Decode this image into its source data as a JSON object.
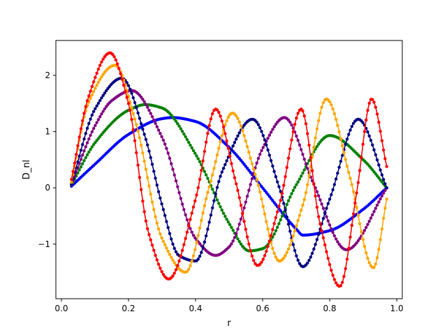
{
  "chart_data": {
    "type": "line",
    "title": "",
    "xlabel": "r",
    "ylabel": "D_nl",
    "xlim": [
      -0.0165,
      1.0165
    ],
    "ylim": [
      -1.97,
      2.62
    ],
    "xticks": [
      0.0,
      0.2,
      0.4,
      0.6,
      0.8,
      1.0
    ],
    "xtick_labels": [
      "0.0",
      "0.2",
      "0.4",
      "0.6",
      "0.8",
      "1.0"
    ],
    "yticks": [
      -1,
      0,
      1,
      2
    ],
    "ytick_labels": [
      "−1",
      "0",
      "1",
      "2"
    ],
    "grid": false,
    "legend": "none",
    "x_range": [
      0.03,
      0.97
    ],
    "series": [
      {
        "color": "#0000ff",
        "markers": "dot",
        "x": [
          0.03,
          0.1,
          0.2,
          0.3,
          0.33,
          0.4,
          0.5,
          0.6,
          0.7,
          0.72,
          0.8,
          0.9,
          0.97
        ],
        "values": [
          0.03,
          0.42,
          0.95,
          1.23,
          1.25,
          1.18,
          0.72,
          0.0,
          -0.73,
          -0.84,
          -0.76,
          -0.38,
          0.0
        ]
      },
      {
        "color": "#008000",
        "markers": "dot",
        "x": [
          0.03,
          0.1,
          0.2,
          0.25,
          0.3,
          0.4,
          0.5,
          0.56,
          0.6,
          0.7,
          0.8,
          0.9,
          0.97
        ],
        "values": [
          0.05,
          0.8,
          1.38,
          1.48,
          1.42,
          0.6,
          -0.63,
          -1.12,
          -1.08,
          0.05,
          0.93,
          0.5,
          0.0
        ]
      },
      {
        "color": "#800080",
        "markers": "dot",
        "x": [
          0.03,
          0.1,
          0.15,
          0.21,
          0.3,
          0.4,
          0.46,
          0.5,
          0.6,
          0.665,
          0.75,
          0.85,
          0.97
        ],
        "values": [
          0.06,
          1.1,
          1.55,
          1.73,
          0.9,
          -0.9,
          -1.2,
          -1.05,
          0.7,
          1.25,
          0.1,
          -1.1,
          0.0
        ]
      },
      {
        "color": "#000080",
        "markers": "dot",
        "x": [
          0.03,
          0.1,
          0.18,
          0.25,
          0.3,
          0.35,
          0.4,
          0.48,
          0.57,
          0.65,
          0.72,
          0.8,
          0.885,
          0.97
        ],
        "values": [
          0.07,
          1.4,
          1.95,
          0.9,
          -0.3,
          -1.2,
          -1.3,
          0.3,
          1.22,
          0.0,
          -1.4,
          -0.2,
          1.22,
          0.0
        ]
      },
      {
        "color": "#ffa500",
        "markers": "dot",
        "x": [
          0.03,
          0.08,
          0.16,
          0.22,
          0.3,
          0.37,
          0.44,
          0.51,
          0.58,
          0.65,
          0.72,
          0.79,
          0.86,
          0.93,
          0.97
        ],
        "values": [
          0.1,
          1.5,
          2.18,
          1.2,
          -0.9,
          -1.5,
          0.0,
          1.33,
          0.2,
          -1.3,
          -0.3,
          1.58,
          0.2,
          -1.42,
          -0.2
        ]
      },
      {
        "color": "#ff0000",
        "markers": "dot",
        "x": [
          0.03,
          0.08,
          0.145,
          0.2,
          0.26,
          0.32,
          0.4,
          0.46,
          0.52,
          0.585,
          0.65,
          0.715,
          0.77,
          0.83,
          0.88,
          0.925,
          0.97
        ],
        "values": [
          0.15,
          1.6,
          2.4,
          1.5,
          -0.8,
          -1.62,
          -0.2,
          1.4,
          0.1,
          -1.38,
          -0.3,
          1.4,
          -0.6,
          -1.75,
          -0.1,
          1.58,
          0.38
        ]
      }
    ]
  }
}
